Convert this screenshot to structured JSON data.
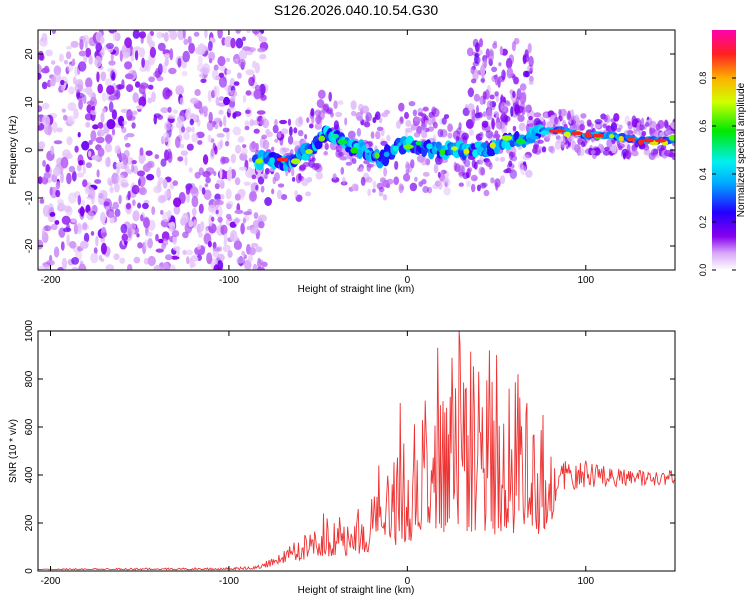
{
  "title": "S126.2026.040.10.54.G30",
  "chart_data": [
    {
      "type": "heatmap",
      "name": "spectrogram",
      "xlabel": "Height of straight line (km)",
      "ylabel": "Frequency (Hz)",
      "xlim": [
        -207,
        150
      ],
      "ylim": [
        -25,
        25
      ],
      "x_ticks": [
        -200,
        -100,
        0,
        100
      ],
      "y_ticks": [
        -20,
        -10,
        0,
        10,
        20
      ],
      "colorbar": {
        "label": "Normalized spectral amplitude",
        "range": [
          0,
          1
        ],
        "ticks": [
          0.0,
          0.2,
          0.4,
          0.6,
          0.8
        ],
        "tick_labels": [
          "0.0",
          "0.2",
          "0.4",
          "0.6",
          "0.8"
        ]
      },
      "noise_region_km": [
        -207,
        -85
      ],
      "ridge": [
        {
          "x": -85,
          "y": -2
        },
        {
          "x": -75,
          "y": -2
        },
        {
          "x": -65,
          "y": -3
        },
        {
          "x": -55,
          "y": 0
        },
        {
          "x": -45,
          "y": 4
        },
        {
          "x": -35,
          "y": 1
        },
        {
          "x": -25,
          "y": 0
        },
        {
          "x": -15,
          "y": -2
        },
        {
          "x": -5,
          "y": 1
        },
        {
          "x": 5,
          "y": 1
        },
        {
          "x": 15,
          "y": 0
        },
        {
          "x": 25,
          "y": 0
        },
        {
          "x": 35,
          "y": 0
        },
        {
          "x": 45,
          "y": 0
        },
        {
          "x": 55,
          "y": 2
        },
        {
          "x": 62,
          "y": 2
        },
        {
          "x": 70,
          "y": 3
        },
        {
          "x": 78,
          "y": 4
        },
        {
          "x": 88,
          "y": 4
        },
        {
          "x": 100,
          "y": 3
        },
        {
          "x": 115,
          "y": 3
        },
        {
          "x": 130,
          "y": 2
        },
        {
          "x": 150,
          "y": 2
        }
      ]
    },
    {
      "type": "line",
      "name": "snr",
      "xlabel": "Height of straight line (km)",
      "ylabel": "SNR (10 * v/v)",
      "xlim": [
        -207,
        150
      ],
      "ylim": [
        0,
        1000
      ],
      "x_ticks": [
        -200,
        -100,
        0,
        100
      ],
      "y_ticks": [
        0,
        200,
        400,
        600,
        800,
        1000
      ],
      "color": "#ee3333",
      "envelope": [
        {
          "x": -207,
          "base": 5,
          "peak": 10
        },
        {
          "x": -100,
          "base": 5,
          "peak": 14
        },
        {
          "x": -85,
          "base": 8,
          "peak": 20
        },
        {
          "x": -75,
          "base": 20,
          "peak": 60
        },
        {
          "x": -65,
          "base": 40,
          "peak": 110
        },
        {
          "x": -45,
          "base": 60,
          "peak": 240
        },
        {
          "x": -25,
          "base": 70,
          "peak": 290
        },
        {
          "x": -10,
          "base": 100,
          "peak": 420
        },
        {
          "x": 0,
          "base": 120,
          "peak": 560
        },
        {
          "x": 10,
          "base": 150,
          "peak": 700
        },
        {
          "x": 20,
          "base": 160,
          "peak": 780
        },
        {
          "x": 30,
          "base": 170,
          "peak": 1000
        },
        {
          "x": 40,
          "base": 160,
          "peak": 860
        },
        {
          "x": 50,
          "base": 150,
          "peak": 840
        },
        {
          "x": 60,
          "base": 150,
          "peak": 820
        },
        {
          "x": 70,
          "base": 150,
          "peak": 650
        },
        {
          "x": 80,
          "base": 150,
          "peak": 560
        },
        {
          "x": 84,
          "base": 300,
          "peak": 470
        },
        {
          "x": 90,
          "base": 330,
          "peak": 470
        },
        {
          "x": 100,
          "base": 350,
          "peak": 460
        },
        {
          "x": 120,
          "base": 350,
          "peak": 430
        },
        {
          "x": 150,
          "base": 360,
          "peak": 420
        }
      ],
      "spikes": [
        {
          "x": 29,
          "y": 1000
        },
        {
          "x": 17,
          "y": 930
        },
        {
          "x": 46,
          "y": 920
        },
        {
          "x": 40,
          "y": 830
        },
        {
          "x": 50,
          "y": 900
        },
        {
          "x": 62,
          "y": 820
        },
        {
          "x": -4,
          "y": 700
        },
        {
          "x": 10,
          "y": 710
        },
        {
          "x": 22,
          "y": 680
        },
        {
          "x": 57,
          "y": 760
        },
        {
          "x": 33,
          "y": 760
        },
        {
          "x": 67,
          "y": 700
        },
        {
          "x": 76,
          "y": 650
        },
        {
          "x": -20,
          "y": 300
        },
        {
          "x": -47,
          "y": 240
        },
        {
          "x": -16,
          "y": 440
        }
      ]
    }
  ]
}
